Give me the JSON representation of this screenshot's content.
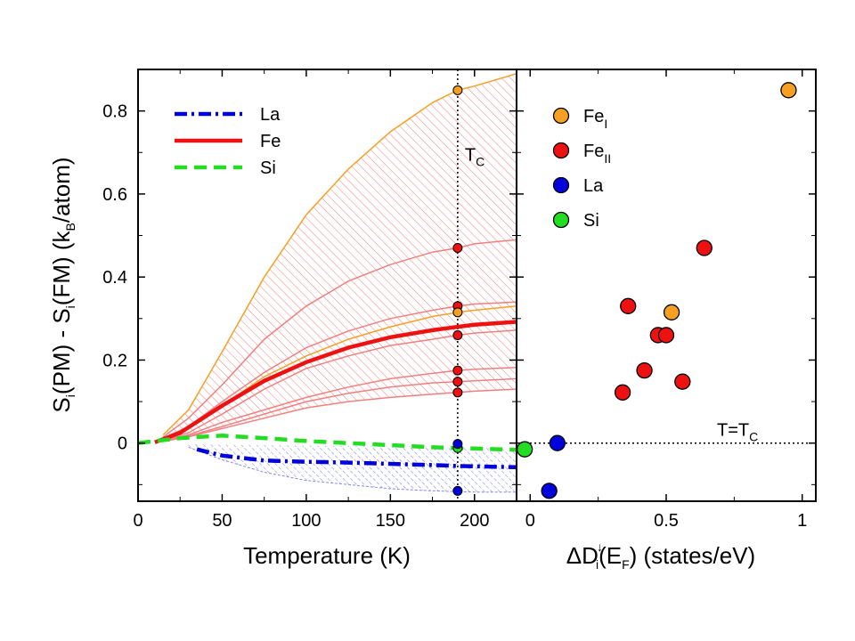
{
  "chart_data": [
    {
      "type": "line",
      "xlabel": "Temperature  (K)",
      "ylabel": "S_i(PM) - S_i(FM)  (k_B/atom)",
      "ylabel_parts": {
        "s1": "S",
        "i1": "i",
        "pm": "(PM) - S",
        "i2": "i",
        "fm": "(FM)  (k",
        "b": "B",
        "unit": "/atom)"
      },
      "xlim": [
        0,
        225
      ],
      "ylim": [
        -0.14,
        0.9
      ],
      "xticks": [
        0,
        50,
        100,
        150,
        200
      ],
      "yticks": [
        0,
        0.2,
        0.4,
        0.6,
        0.8
      ],
      "xtick_labels": [
        "0",
        "50",
        "100",
        "150",
        "200"
      ],
      "ytick_labels": [
        "0",
        "0.2",
        "0.4",
        "0.6",
        "0.8"
      ],
      "annotation": {
        "main": "T",
        "sub": "C",
        "x": 190
      },
      "legend": {
        "placement": "top-left",
        "entries": [
          {
            "name": "La",
            "color": "#0000dd",
            "style": "dashdot"
          },
          {
            "name": "Fe",
            "color": "#ee1111",
            "style": "solid"
          },
          {
            "name": "Si",
            "color": "#22dd22",
            "style": "dashed"
          }
        ]
      },
      "series": [
        {
          "name": "La",
          "color": "#0000dd",
          "x": [
            35,
            50,
            75,
            100,
            125,
            150,
            175,
            190,
            200,
            225
          ],
          "y": [
            -0.015,
            -0.03,
            -0.042,
            -0.045,
            -0.047,
            -0.05,
            -0.053,
            -0.055,
            -0.056,
            -0.058
          ]
        },
        {
          "name": "Fe",
          "color": "#ee1111",
          "x": [
            10,
            25,
            50,
            75,
            100,
            125,
            150,
            175,
            190,
            200,
            225
          ],
          "y": [
            0.002,
            0.025,
            0.09,
            0.15,
            0.195,
            0.23,
            0.255,
            0.272,
            0.28,
            0.285,
            0.292
          ]
        },
        {
          "name": "Si",
          "color": "#22dd22",
          "x": [
            0,
            25,
            50,
            75,
            100,
            125,
            150,
            175,
            190,
            200,
            225
          ],
          "y": [
            0,
            0.012,
            0.018,
            0.012,
            0.005,
            0,
            -0.005,
            -0.01,
            -0.012,
            -0.013,
            -0.016
          ]
        }
      ],
      "fe_band_curves": [
        {
          "color": "#f5a023",
          "x": [
            15,
            30,
            50,
            75,
            100,
            125,
            150,
            175,
            190,
            200,
            225
          ],
          "y": [
            0.02,
            0.08,
            0.22,
            0.4,
            0.55,
            0.66,
            0.75,
            0.82,
            0.85,
            0.86,
            0.89
          ]
        },
        {
          "color": "#f08080",
          "x": [
            15,
            30,
            50,
            75,
            100,
            125,
            150,
            175,
            190,
            200,
            225
          ],
          "y": [
            0.015,
            0.06,
            0.14,
            0.25,
            0.33,
            0.39,
            0.43,
            0.46,
            0.47,
            0.48,
            0.49
          ]
        },
        {
          "color": "#f08080",
          "x": [
            15,
            30,
            50,
            75,
            100,
            125,
            150,
            175,
            190,
            200,
            225
          ],
          "y": [
            0.012,
            0.04,
            0.1,
            0.17,
            0.23,
            0.27,
            0.3,
            0.32,
            0.33,
            0.335,
            0.34
          ]
        },
        {
          "color": "#f5a023",
          "x": [
            15,
            30,
            50,
            75,
            100,
            125,
            150,
            175,
            190,
            200,
            225
          ],
          "y": [
            0.01,
            0.035,
            0.09,
            0.16,
            0.21,
            0.25,
            0.28,
            0.305,
            0.315,
            0.32,
            0.33
          ]
        },
        {
          "color": "#f08080",
          "x": [
            15,
            30,
            50,
            75,
            100,
            125,
            150,
            175,
            190,
            200,
            225
          ],
          "y": [
            0.008,
            0.025,
            0.07,
            0.13,
            0.18,
            0.21,
            0.235,
            0.25,
            0.26,
            0.265,
            0.272
          ]
        },
        {
          "color": "#f08080",
          "x": [
            15,
            30,
            50,
            75,
            100,
            125,
            150,
            175,
            190,
            200,
            225
          ],
          "y": [
            0.006,
            0.02,
            0.05,
            0.08,
            0.11,
            0.135,
            0.155,
            0.168,
            0.175,
            0.178,
            0.182
          ]
        },
        {
          "color": "#f08080",
          "x": [
            15,
            30,
            50,
            75,
            100,
            125,
            150,
            175,
            190,
            200,
            225
          ],
          "y": [
            0.005,
            0.017,
            0.04,
            0.07,
            0.1,
            0.12,
            0.135,
            0.145,
            0.148,
            0.15,
            0.155
          ]
        },
        {
          "color": "#f08080",
          "x": [
            15,
            30,
            50,
            75,
            100,
            125,
            150,
            175,
            190,
            200,
            225
          ],
          "y": [
            0.004,
            0.015,
            0.035,
            0.06,
            0.085,
            0.1,
            0.11,
            0.118,
            0.122,
            0.125,
            0.13
          ]
        }
      ],
      "la_band_lower": {
        "x": [
          30,
          50,
          75,
          100,
          125,
          150,
          175,
          190,
          200,
          225
        ],
        "y": [
          -0.01,
          -0.04,
          -0.07,
          -0.09,
          -0.1,
          -0.11,
          -0.115,
          -0.117,
          -0.118,
          -0.118
        ]
      },
      "la_band_upper": {
        "x": [
          30,
          50,
          75,
          100,
          125,
          150,
          175,
          190,
          200,
          225
        ],
        "y": [
          -0.002,
          -0.004,
          -0.005,
          -0.006,
          -0.007,
          -0.008,
          -0.009,
          -0.01,
          -0.011,
          -0.012
        ]
      },
      "tc_points": [
        {
          "x": 190,
          "y": 0.85,
          "color": "#f5a023"
        },
        {
          "x": 190,
          "y": 0.47,
          "color": "#ee1111"
        },
        {
          "x": 190,
          "y": 0.33,
          "color": "#ee1111"
        },
        {
          "x": 190,
          "y": 0.315,
          "color": "#f5a023"
        },
        {
          "x": 190,
          "y": 0.26,
          "color": "#ee1111"
        },
        {
          "x": 190,
          "y": 0.175,
          "color": "#ee1111"
        },
        {
          "x": 190,
          "y": 0.148,
          "color": "#ee1111"
        },
        {
          "x": 190,
          "y": 0.122,
          "color": "#ee1111"
        },
        {
          "x": 190,
          "y": -0.012,
          "color": "#22dd22"
        },
        {
          "x": 190,
          "y": -0.002,
          "color": "#0000dd"
        },
        {
          "x": 190,
          "y": -0.115,
          "color": "#0000dd"
        }
      ]
    },
    {
      "type": "scatter",
      "xlabel_parts": {
        "delta": "ΔD",
        "sup": "↓",
        "sub": "i",
        "rest": "(E",
        "f": "F",
        "unit": ")  (states/eV)"
      },
      "xlim": [
        -0.05,
        1.05
      ],
      "ylim": [
        -0.14,
        0.9
      ],
      "xticks": [
        0,
        0.5,
        1
      ],
      "xtick_labels": [
        "0",
        "0.5",
        "1"
      ],
      "annotation": {
        "main": "T=T",
        "sub": "C"
      },
      "legend": {
        "placement": "top-left",
        "entries": [
          {
            "main": "Fe",
            "sub": "I",
            "color": "#f5a023"
          },
          {
            "main": "Fe",
            "sub": "II",
            "color": "#ee1111"
          },
          {
            "main": "La",
            "sub": "",
            "color": "#0000dd"
          },
          {
            "main": "Si",
            "sub": "",
            "color": "#22dd22"
          }
        ]
      },
      "points": [
        {
          "species": "FeI",
          "x": 0.95,
          "y": 0.85,
          "color": "#f5a023"
        },
        {
          "species": "FeI",
          "x": 0.52,
          "y": 0.315,
          "color": "#f5a023"
        },
        {
          "species": "FeII",
          "x": 0.64,
          "y": 0.47,
          "color": "#ee1111"
        },
        {
          "species": "FeII",
          "x": 0.36,
          "y": 0.33,
          "color": "#ee1111"
        },
        {
          "species": "FeII",
          "x": 0.47,
          "y": 0.26,
          "color": "#ee1111"
        },
        {
          "species": "FeII",
          "x": 0.5,
          "y": 0.26,
          "color": "#ee1111"
        },
        {
          "species": "FeII",
          "x": 0.42,
          "y": 0.175,
          "color": "#ee1111"
        },
        {
          "species": "FeII",
          "x": 0.56,
          "y": 0.148,
          "color": "#ee1111"
        },
        {
          "species": "FeII",
          "x": 0.34,
          "y": 0.122,
          "color": "#ee1111"
        },
        {
          "species": "La",
          "x": 0.1,
          "y": 0.0,
          "color": "#0000dd"
        },
        {
          "species": "La",
          "x": 0.07,
          "y": -0.115,
          "color": "#0000dd"
        },
        {
          "species": "Si",
          "x": -0.02,
          "y": -0.015,
          "color": "#22dd22"
        }
      ]
    }
  ]
}
